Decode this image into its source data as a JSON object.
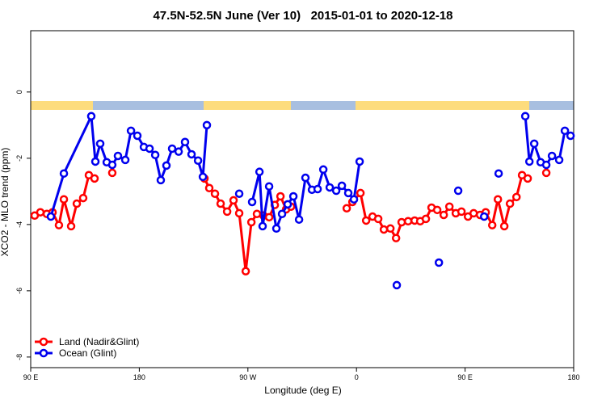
{
  "chart_data": {
    "type": "line",
    "title": "47.5N-52.5N June (Ver 10)   2015-01-01 to 2020-12-18",
    "x_label": "Longitude (deg E)",
    "y_label": "XCO2 - MLO trend (ppm)",
    "xlim": [
      90,
      540
    ],
    "xticks": [
      {
        "value": 90,
        "label": "90 E"
      },
      180,
      {
        "value": 270,
        "label": "90 W"
      },
      {
        "value": 360,
        "label": "0"
      },
      {
        "value": 450,
        "label": "90 E"
      },
      {
        "value": 540,
        "label": "180"
      }
    ],
    "ylim": [
      -8.32,
      1.85
    ],
    "yticks": [
      0,
      -2,
      -4,
      -6,
      -8
    ],
    "legend": "bottom-left",
    "series": [
      {
        "name": "Land (Nadir&Glint)",
        "color": "#ff0000",
        "x": [
          93.3,
          98.0,
          103.4,
          108.1,
          113.4,
          117.5,
          123.5,
          128.2,
          133.5,
          138.2,
          142.9,
          null,
          157.6,
          null,
          234.0,
          238.0,
          242.7,
          247.4,
          252.8,
          258.1,
          262.8,
          268.2,
          272.9,
          277.5,
          282.9,
          287.6,
          292.3,
          297.0,
          301.7,
          305.7,
          null,
          351.9,
          356.6,
          363.3,
          368.0,
          373.3,
          378.0,
          382.7,
          388.1,
          392.8,
          397.4,
          402.8,
          408.2,
          412.8,
          417.5,
          422.2,
          426.9,
          432.3,
          437.0,
          442.3,
          447.0,
          452.4,
          457.1,
          462.4,
          467.1,
          472.5,
          477.2,
          482.5,
          487.2,
          492.6,
          497.2,
          501.9,
          null,
          517.3
        ],
        "values": [
          -3.73,
          -3.63,
          -3.68,
          -3.63,
          -4.02,
          -3.24,
          -4.05,
          -3.37,
          -3.2,
          -2.51,
          -2.61,
          null,
          -2.44,
          null,
          -2.61,
          -2.9,
          -3.07,
          -3.37,
          -3.61,
          -3.27,
          -3.66,
          -5.41,
          -3.93,
          -3.68,
          -3.73,
          -3.78,
          -3.41,
          -3.15,
          -3.54,
          -3.46,
          null,
          -3.51,
          -3.32,
          -3.05,
          -3.88,
          -3.76,
          -3.83,
          -4.15,
          -4.12,
          -4.41,
          -3.93,
          -3.9,
          -3.88,
          -3.9,
          -3.83,
          -3.49,
          -3.56,
          -3.71,
          -3.46,
          -3.66,
          -3.61,
          -3.76,
          -3.66,
          -3.71,
          -3.63,
          -4.02,
          -3.24,
          -4.05,
          -3.37,
          -3.17,
          -2.51,
          -2.61,
          null,
          -2.44
        ]
      },
      {
        "name": "Ocean (Glint)",
        "color": "#0000ee",
        "x": [
          106.7,
          117.5,
          140.2,
          143.6,
          147.6,
          153.0,
          157.6,
          162.3,
          168.4,
          173.1,
          178.4,
          183.8,
          188.5,
          193.2,
          197.8,
          202.5,
          207.2,
          212.6,
          217.9,
          223.3,
          228.7,
          232.7,
          236.0,
          null,
          262.8,
          null,
          273.5,
          279.6,
          282.2,
          287.6,
          293.6,
          298.3,
          303.0,
          307.7,
          312.4,
          317.7,
          323.1,
          327.8,
          332.5,
          337.8,
          343.2,
          347.9,
          353.2,
          357.9,
          362.6,
          null,
          393.4,
          null,
          428.3,
          null,
          444.3,
          null,
          465.8,
          null,
          477.8,
          null,
          499.9,
          503.3,
          507.3,
          512.6,
          517.3,
          522.0,
          528.0,
          532.7,
          537.4
        ],
        "values": [
          -3.76,
          -2.46,
          -0.73,
          -2.1,
          -1.56,
          -2.12,
          -2.2,
          -1.93,
          -2.05,
          -1.17,
          -1.32,
          -1.66,
          -1.71,
          -1.9,
          -2.66,
          -2.22,
          -1.71,
          -1.8,
          -1.51,
          -1.88,
          -2.07,
          -2.56,
          -1.0,
          null,
          -3.07,
          null,
          -3.32,
          -2.41,
          -4.05,
          -2.85,
          -4.12,
          -3.68,
          -3.39,
          -3.15,
          -3.85,
          -2.59,
          -2.95,
          -2.93,
          -2.34,
          -2.88,
          -2.98,
          -2.83,
          -3.05,
          -3.24,
          -2.1,
          null,
          -5.83,
          null,
          -5.15,
          null,
          -2.98,
          null,
          -3.76,
          null,
          -2.46,
          null,
          -0.73,
          -2.1,
          -1.56,
          -2.12,
          -2.2,
          -1.93,
          -2.05,
          -1.17,
          -1.32
        ]
      }
    ]
  }
}
